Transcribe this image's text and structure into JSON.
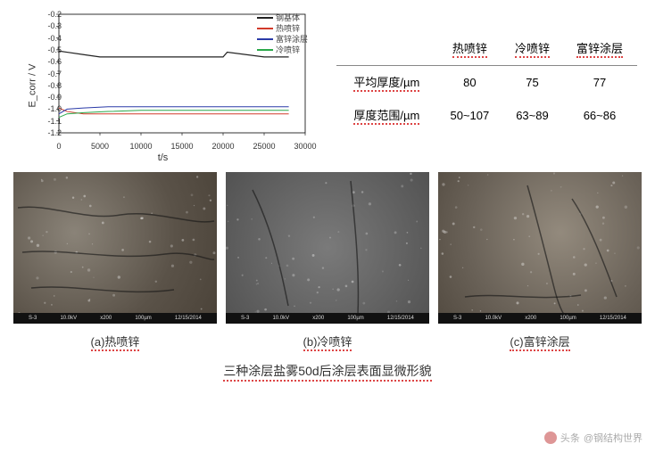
{
  "chart": {
    "type": "line",
    "ylabel": "E_corr / V",
    "xlabel": "t/s",
    "xlim": [
      0,
      30000
    ],
    "ylim": [
      -1.2,
      -0.2
    ],
    "xtick_step": 5000,
    "ytick_step": 0.1,
    "xticks": [
      0,
      5000,
      10000,
      15000,
      20000,
      25000,
      30000
    ],
    "yticks": [
      -0.2,
      -0.3,
      -0.4,
      -0.5,
      -0.6,
      -0.7,
      -0.8,
      -0.9,
      -1.0,
      -1.1,
      -1.2
    ],
    "background_color": "#ffffff",
    "axis_color": "#000000",
    "legend_position": "top-right",
    "series": [
      {
        "name": "钢基体",
        "color": "#222222",
        "line_width": 1.2,
        "x": [
          0,
          1000,
          3000,
          5000,
          10000,
          15000,
          20000,
          20500,
          25000,
          28000
        ],
        "y": [
          -0.51,
          -0.52,
          -0.54,
          -0.56,
          -0.56,
          -0.56,
          -0.56,
          -0.52,
          -0.56,
          -0.56
        ]
      },
      {
        "name": "热喷锌",
        "color": "#d23a2a",
        "line_width": 1.0,
        "x": [
          0,
          1000,
          3000,
          6000,
          10000,
          15000,
          20000,
          25000,
          28000
        ],
        "y": [
          -0.99,
          -1.02,
          -1.04,
          -1.04,
          -1.04,
          -1.04,
          -1.04,
          -1.04,
          -1.04
        ]
      },
      {
        "name": "富锌涂层",
        "color": "#2a3aa8",
        "line_width": 1.0,
        "x": [
          0,
          1000,
          3000,
          6000,
          10000,
          15000,
          20000,
          25000,
          28000
        ],
        "y": [
          -1.04,
          -1.0,
          -0.99,
          -0.98,
          -0.98,
          -0.98,
          -0.98,
          -0.98,
          -0.98
        ]
      },
      {
        "name": "冷喷锌",
        "color": "#2aa84a",
        "line_width": 1.0,
        "x": [
          0,
          1000,
          3000,
          6000,
          10000,
          15000,
          20000,
          25000,
          28000
        ],
        "y": [
          -1.07,
          -1.04,
          -1.03,
          -1.02,
          -1.01,
          -1.01,
          -1.01,
          -1.01,
          -1.01
        ]
      }
    ]
  },
  "table": {
    "type": "table",
    "columns": [
      "",
      "热喷锌",
      "冷喷锌",
      "富锌涂层"
    ],
    "rows": [
      {
        "label": "平均厚度/µm",
        "values": [
          "80",
          "75",
          "77"
        ]
      },
      {
        "label": "厚度范围/µm",
        "values": [
          "50~107",
          "63~89",
          "66~86"
        ]
      }
    ],
    "font_size": 13,
    "underline_color": "#d44444"
  },
  "sem": {
    "items": [
      {
        "caption": "(a)热喷锌",
        "bg": "#6a645c",
        "gradient": "radial-gradient(circle at 30% 40%, #8a8378 0%, #5a5248 60%, #4a4238 100%)",
        "cracks": [
          "M5,40 C40,35 80,55 120,48 C160,42 200,60 225,55",
          "M10,90 C60,85 110,100 170,92 C200,88 220,100 225,98",
          "M20,130 C70,125 120,140 180,132"
        ]
      },
      {
        "caption": "(b)冷喷锌",
        "bg": "#6d6d6d",
        "gradient": "radial-gradient(circle at 50% 50%, #7a7a7a 0%, #5e5e5e 70%, #525252 100%)",
        "cracks": [
          "M30,20 C50,60 60,100 70,150",
          "M140,10 C145,60 150,110 148,160"
        ]
      },
      {
        "caption": "(c)富锌涂层",
        "bg": "#7a7268",
        "gradient": "radial-gradient(circle at 60% 40%, #938a7d 0%, #6a6258 60%, #524a40 100%)",
        "cracks": [
          "M100,15 C110,50 120,90 130,130 C135,150 140,160 145,165",
          "M30,140 C70,135 110,145 160,138",
          "M150,30 C170,60 185,100 200,140"
        ]
      }
    ],
    "bar_labels": [
      "S-3",
      "10.0kV",
      "x200",
      "100µm",
      "12/15/2014"
    ],
    "bar_bg": "#111111",
    "bar_text": "#cccccc"
  },
  "caption": "三种涂层盐雾50d后涂层表面显微形貌",
  "watermark": {
    "prefix": "头条",
    "text": "@钢结构世界"
  },
  "colors": {
    "text": "#333333",
    "bg": "#ffffff"
  }
}
